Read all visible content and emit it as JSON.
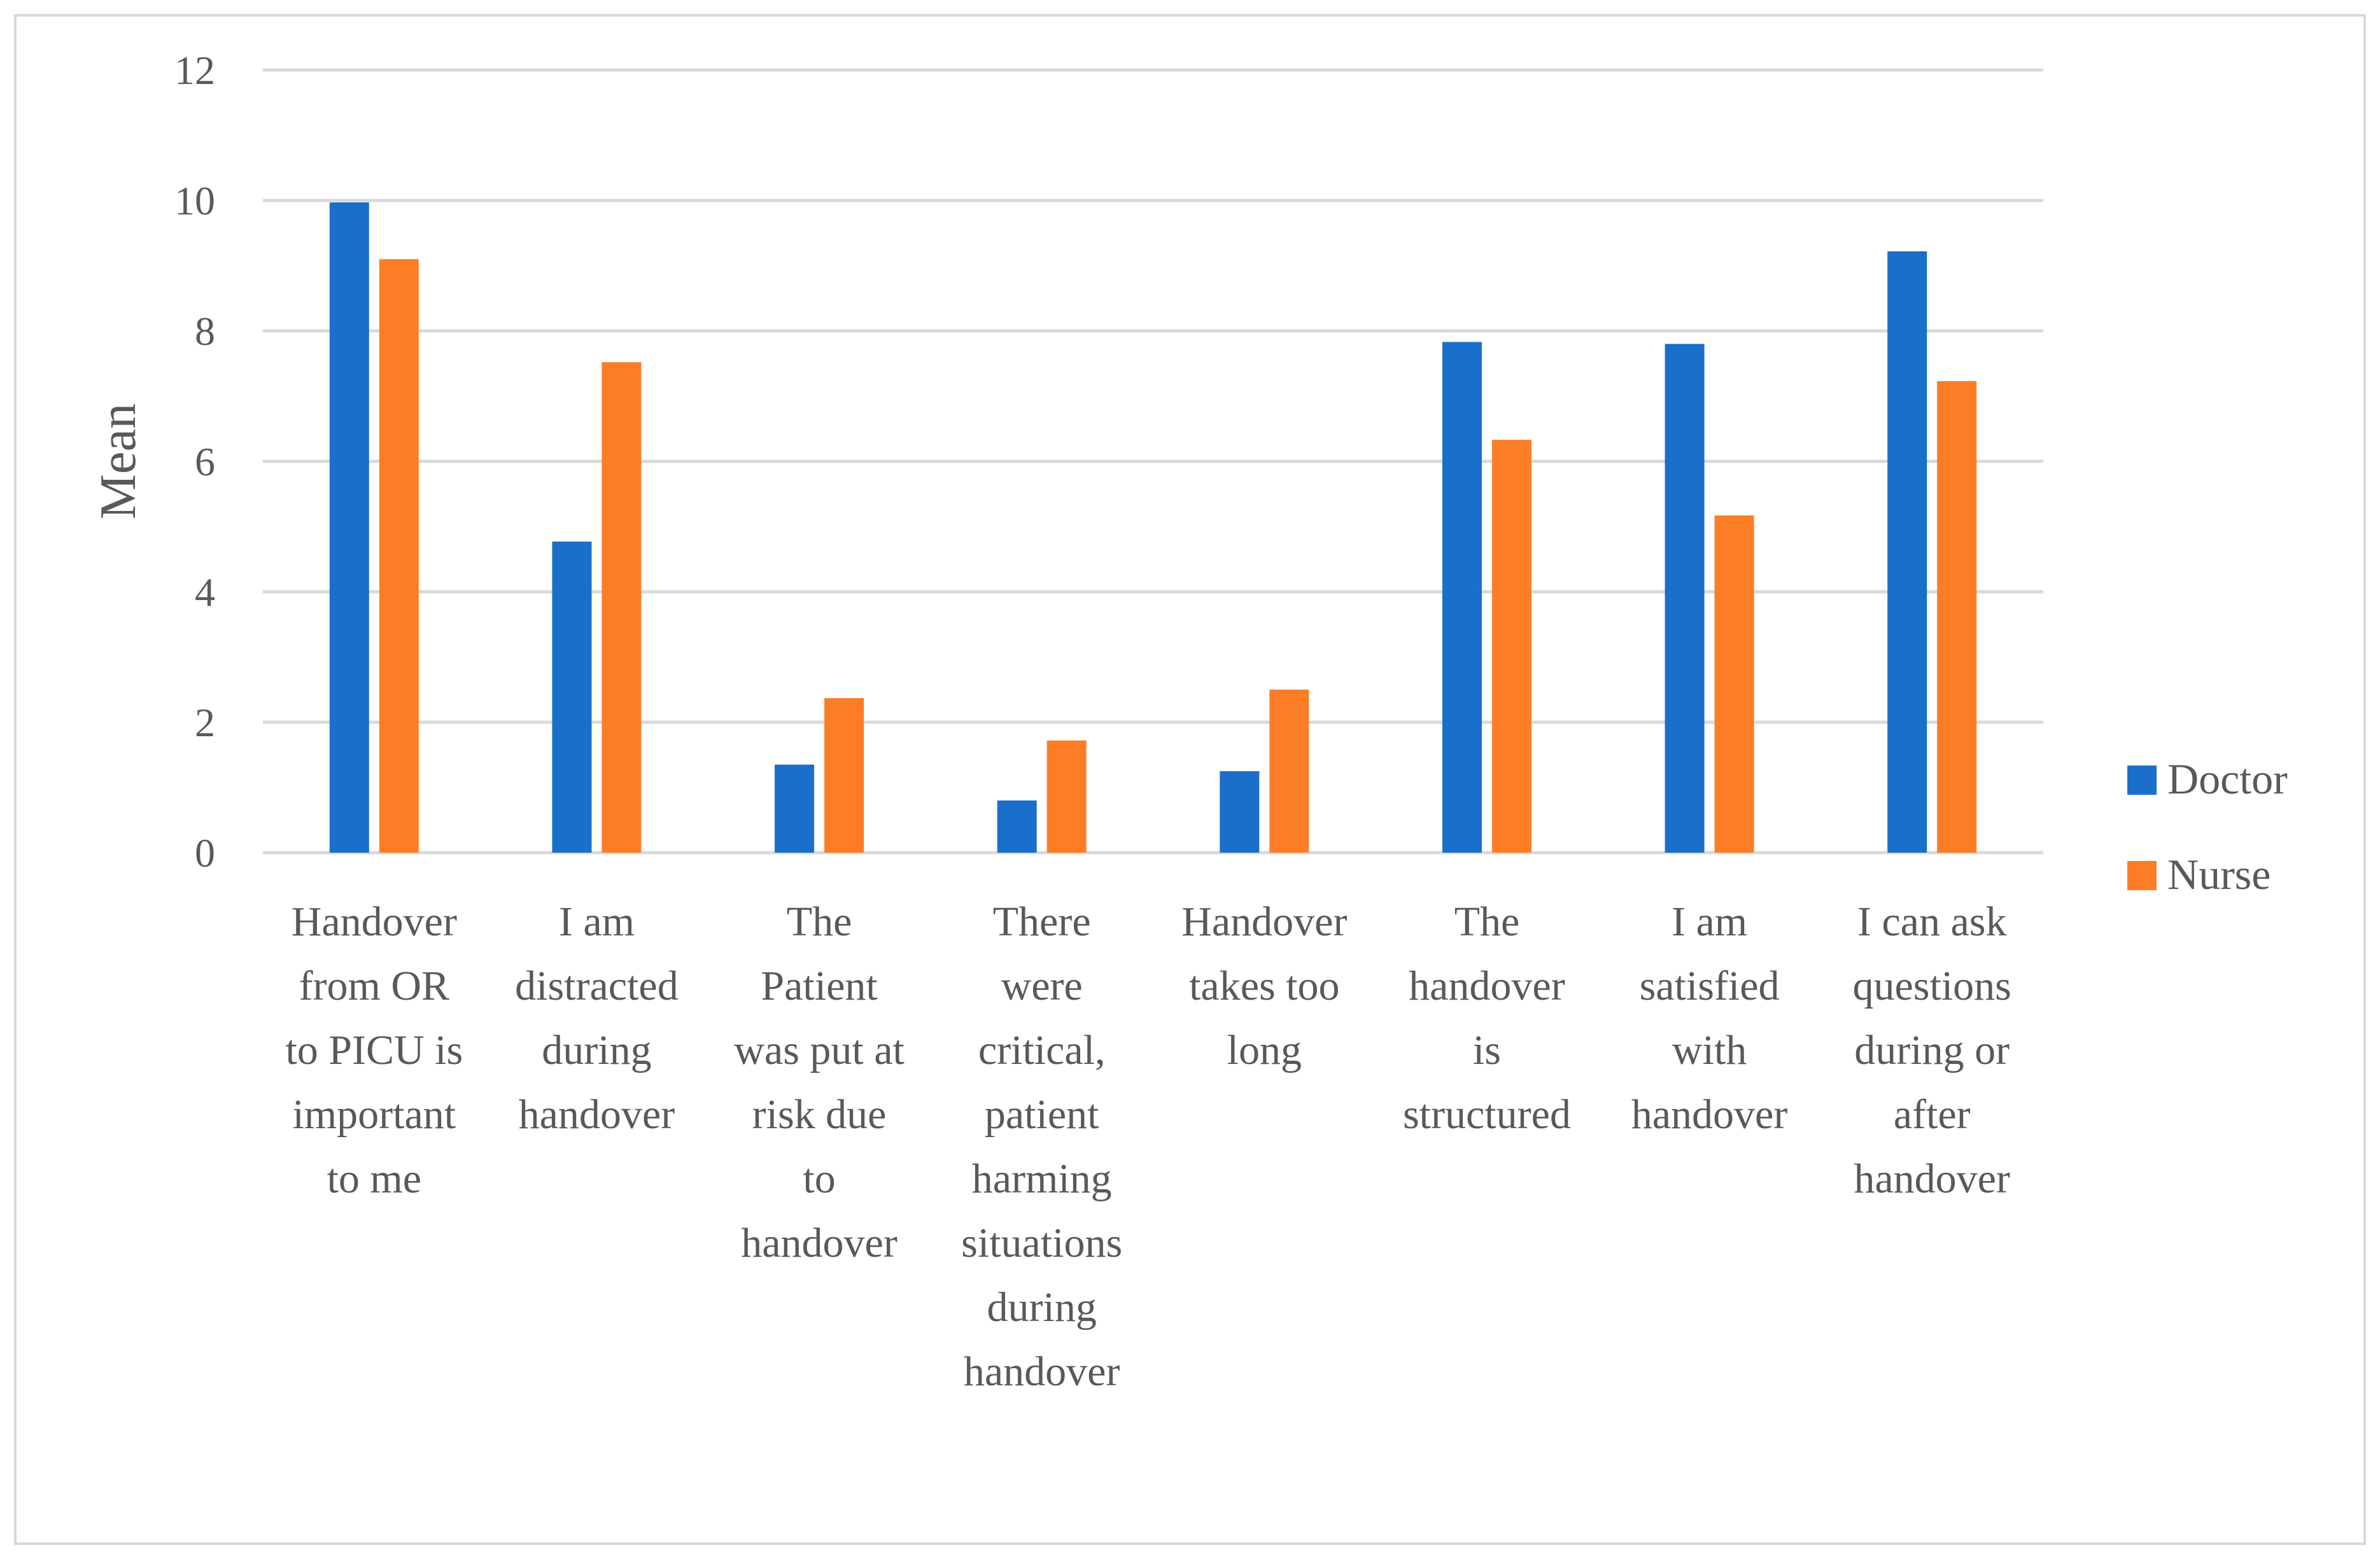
{
  "chart_data": {
    "type": "bar",
    "title": "",
    "xlabel": "",
    "ylabel": "Mean",
    "ylim": [
      0,
      12
    ],
    "yticks": [
      0,
      2,
      4,
      6,
      8,
      10,
      12
    ],
    "grid": true,
    "legend_position": "right",
    "categories": [
      [
        "Handover",
        "from OR",
        "to PICU is",
        "important",
        "to me"
      ],
      [
        "I am",
        "distracted",
        "during",
        "handover"
      ],
      [
        "The",
        "Patient",
        "was put at",
        "risk due",
        "to",
        "handover"
      ],
      [
        "There",
        "were",
        "critical,",
        "patient",
        "harming",
        "situations",
        "during",
        "handover"
      ],
      [
        "Handover",
        "takes too",
        "long"
      ],
      [
        "The",
        "handover",
        "is",
        "structured"
      ],
      [
        "I am",
        "satisfied",
        "with",
        "handover"
      ],
      [
        "I can ask",
        "questions",
        "during or",
        "after",
        "handover"
      ]
    ],
    "series": [
      {
        "name": "Doctor",
        "color": "#1a6fcb",
        "values": [
          9.97,
          4.77,
          1.35,
          0.8,
          1.25,
          7.83,
          7.8,
          9.22
        ]
      },
      {
        "name": "Nurse",
        "color": "#fd7d27",
        "values": [
          9.1,
          7.52,
          2.37,
          1.72,
          2.5,
          6.33,
          5.17,
          7.23
        ]
      }
    ]
  }
}
